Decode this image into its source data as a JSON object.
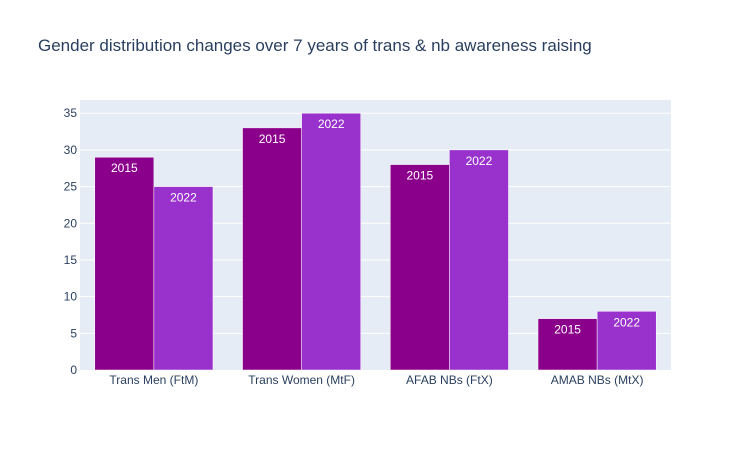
{
  "chart_data": {
    "type": "bar",
    "title": "Gender distribution changes over 7 years of trans & nb awareness raising",
    "xlabel": "",
    "ylabel": "",
    "categories": [
      "Trans Men (FtM)",
      "Trans Women (MtF)",
      "AFAB NBs (FtX)",
      "AMAB NBs (MtX)"
    ],
    "series": [
      {
        "label": "2015",
        "color": "#8b008b",
        "values": [
          29,
          33,
          28,
          7
        ]
      },
      {
        "label": "2022",
        "color": "#9932cc",
        "values": [
          25,
          35,
          30,
          8
        ]
      }
    ],
    "ylim": [
      0,
      36.8
    ],
    "yticks": [
      0,
      5,
      10,
      15,
      20,
      25,
      30,
      35
    ],
    "grid": true,
    "legend": "none",
    "colors": {
      "plot_background": "#e5ecf6",
      "gridline": "#ffffff",
      "text": "#2a3f5f"
    }
  }
}
